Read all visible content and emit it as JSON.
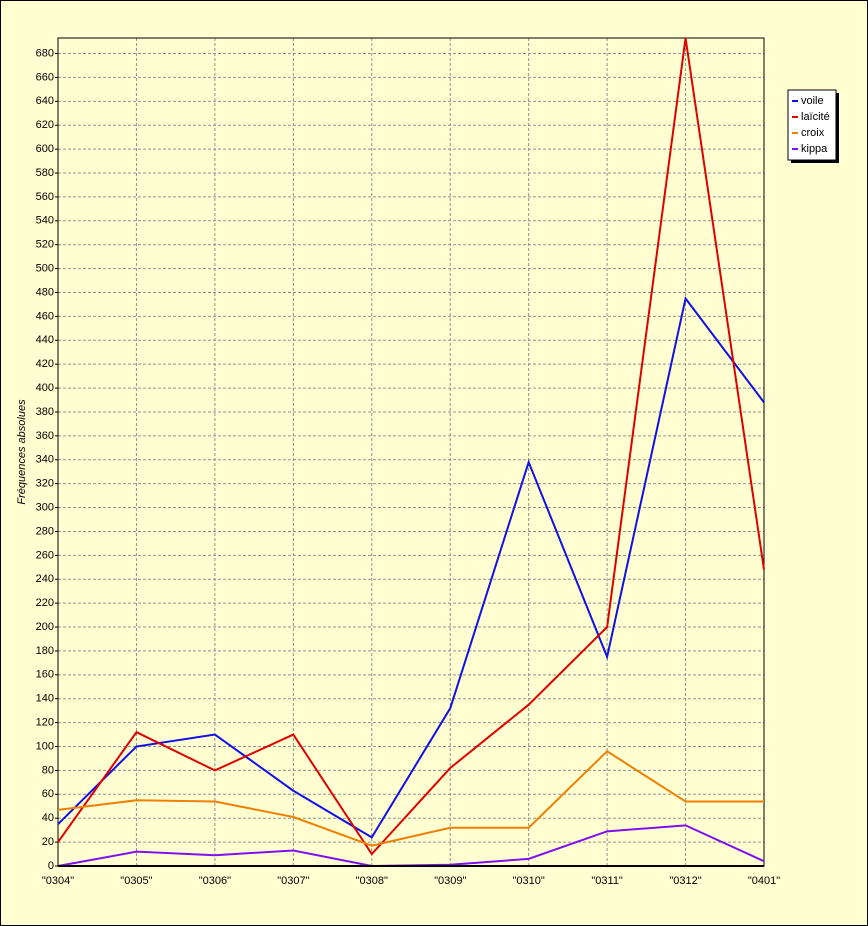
{
  "chart_data": {
    "type": "line",
    "y_label": "Fréquences absolues",
    "categories": [
      "\"0304\"",
      "\"0305\"",
      "\"0306\"",
      "\"0307\"",
      "\"0308\"",
      "\"0309\"",
      "\"0310\"",
      "\"0311\"",
      "\"0312\"",
      "\"0401\""
    ],
    "series": [
      {
        "name": "voile",
        "color": "#1010e8",
        "values": [
          35,
          100,
          110,
          63,
          24,
          132,
          338,
          175,
          475,
          388
        ]
      },
      {
        "name": "laïcité",
        "color": "#e00000",
        "values": [
          20,
          112,
          80,
          110,
          10,
          82,
          135,
          200,
          693,
          248
        ]
      },
      {
        "name": "croix",
        "color": "#f08000",
        "values": [
          47,
          55,
          54,
          41,
          17,
          32,
          32,
          96,
          54,
          54
        ]
      },
      {
        "name": "kippa",
        "color": "#8010f0",
        "values": [
          0,
          12,
          9,
          13,
          0,
          1,
          6,
          29,
          34,
          4
        ]
      }
    ],
    "ylim": [
      0,
      693
    ],
    "yticks": [
      0,
      20,
      40,
      60,
      80,
      100,
      120,
      140,
      160,
      180,
      200,
      220,
      240,
      260,
      280,
      300,
      320,
      340,
      360,
      380,
      400,
      420,
      440,
      460,
      480,
      500,
      520,
      540,
      560,
      580,
      600,
      620,
      640,
      660,
      680
    ],
    "grid": true,
    "legend": "upper right"
  }
}
